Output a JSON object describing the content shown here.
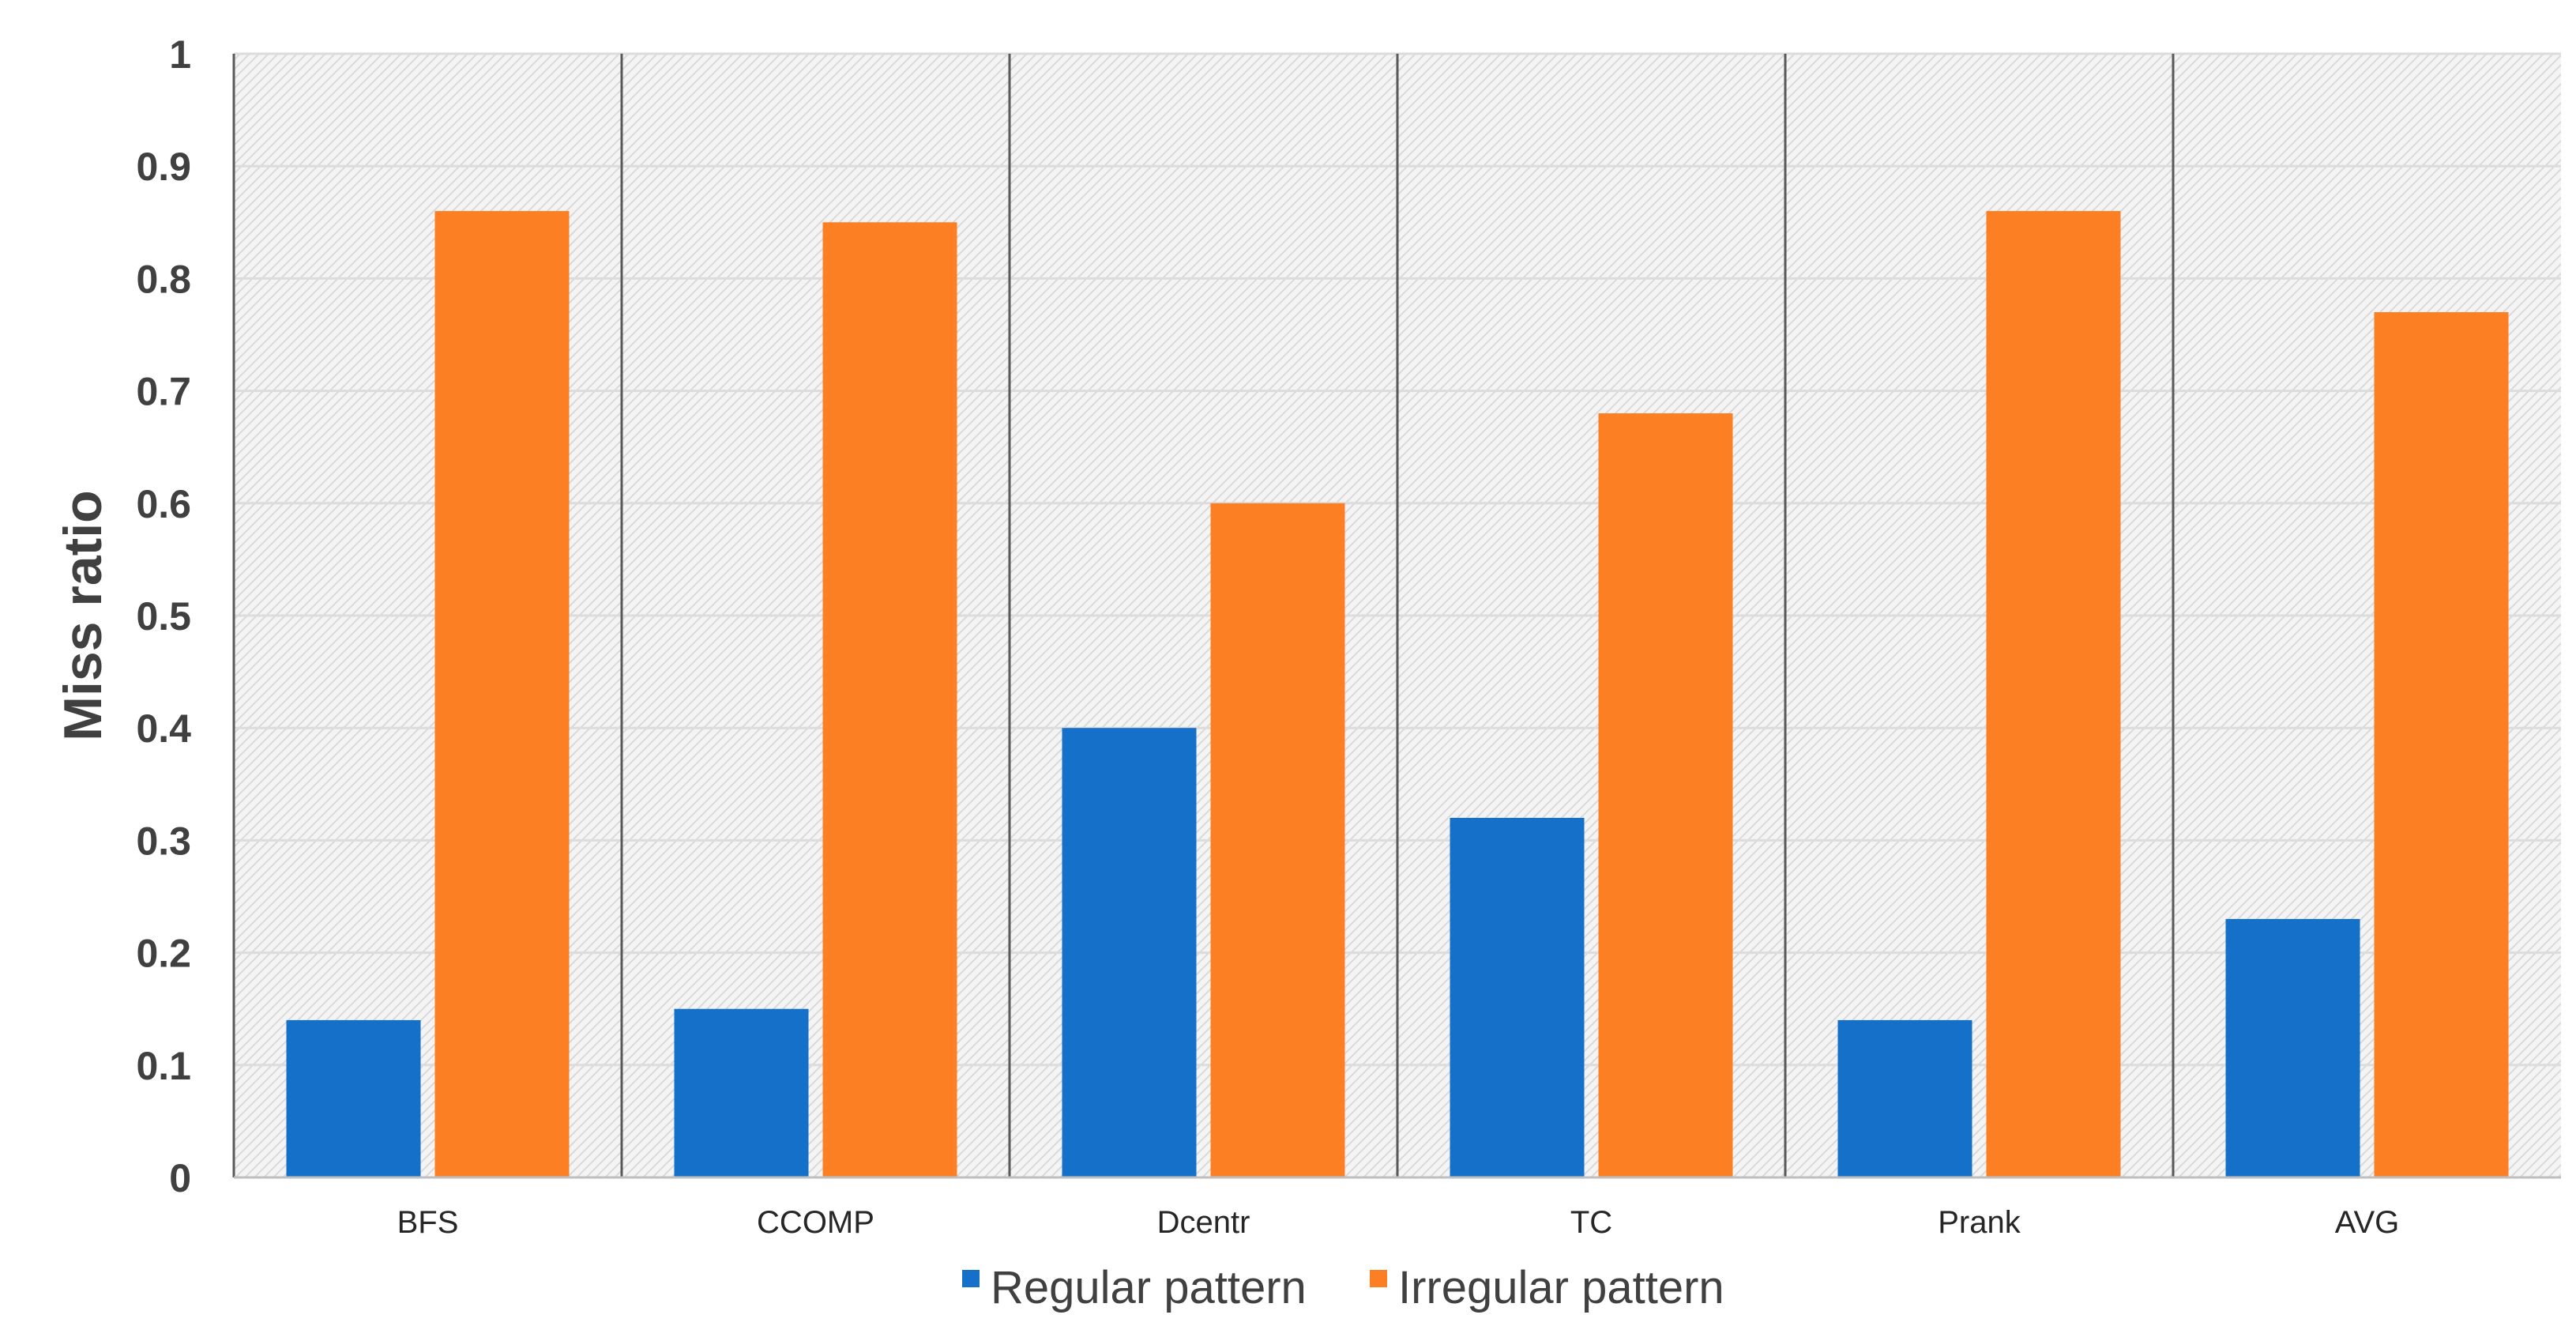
{
  "chart_data": {
    "type": "bar",
    "title": "",
    "xlabel": "",
    "ylabel": "Miss ratio",
    "ylim": [
      0,
      1
    ],
    "yticks": [
      "0",
      "0.1",
      "0.2",
      "0.3",
      "0.4",
      "0.5",
      "0.6",
      "0.7",
      "0.8",
      "0.9",
      "1"
    ],
    "categories": [
      "BFS",
      "CCOMP",
      "Dcentr",
      "TC",
      "Prank",
      "AVG"
    ],
    "series": [
      {
        "name": "Regular pattern",
        "color": "#1570c9",
        "values": [
          0.14,
          0.15,
          0.4,
          0.32,
          0.14,
          0.23
        ]
      },
      {
        "name": "Irregular pattern",
        "color": "#fd7f23",
        "values": [
          0.86,
          0.85,
          0.6,
          0.68,
          0.86,
          0.77
        ]
      }
    ],
    "grid": true,
    "legend": "bottom"
  }
}
